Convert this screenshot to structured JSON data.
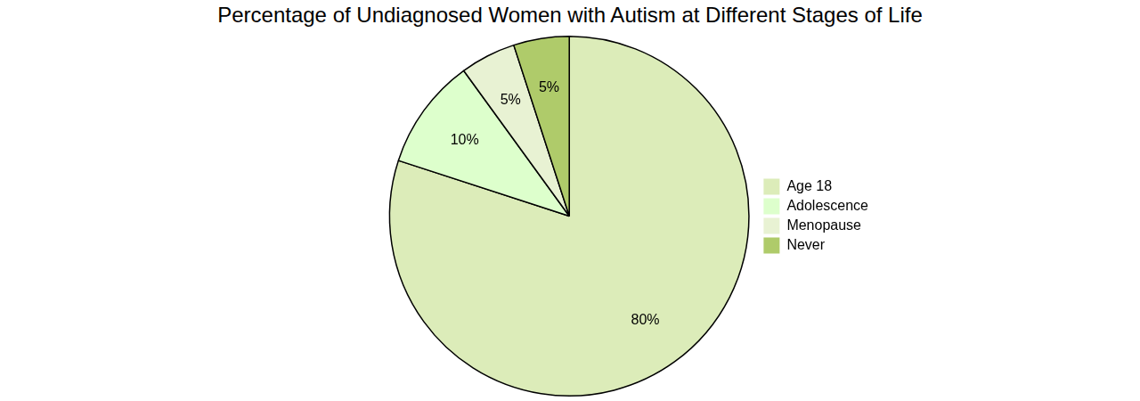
{
  "chart_data": {
    "type": "pie",
    "title": "Percentage of Undiagnosed Women with Autism at Different Stages of Life",
    "categories": [
      "Age 18",
      "Adolescence",
      "Menopause",
      "Never"
    ],
    "values": [
      80,
      10,
      5,
      5
    ],
    "value_labels": [
      "80%",
      "10%",
      "5%",
      "5%"
    ],
    "colors": [
      "#dcecb9",
      "#ddffcc",
      "#e8f2d3",
      "#afcb6a"
    ],
    "legend": "right",
    "data_labels": true
  }
}
